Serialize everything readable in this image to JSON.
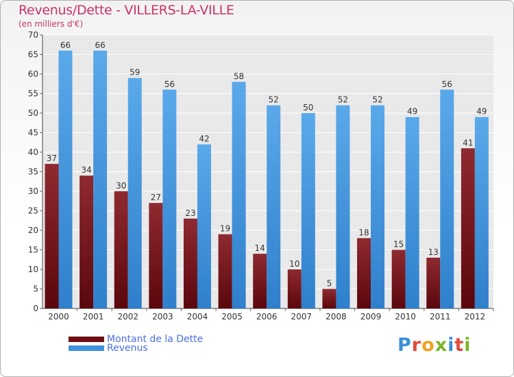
{
  "chart_data": {
    "type": "bar",
    "title": "Revenus/Dette - VILLERS-LA-VILLE",
    "subtitle": "(en milliers d'€)",
    "categories": [
      "2000",
      "2001",
      "2002",
      "2003",
      "2004",
      "2005",
      "2006",
      "2007",
      "2008",
      "2009",
      "2010",
      "2011",
      "2012"
    ],
    "series": [
      {
        "name": "Montant de la Dette",
        "color": "#6e0f15",
        "values": [
          37,
          34,
          30,
          27,
          23,
          19,
          14,
          10,
          5,
          18,
          15,
          13,
          41
        ]
      },
      {
        "name": "Revenus",
        "color": "#3e92e0",
        "values": [
          66,
          66,
          59,
          56,
          42,
          58,
          52,
          50,
          52,
          52,
          49,
          56,
          49
        ]
      }
    ],
    "ylim": [
      0,
      70
    ],
    "yticks": [
      0,
      5,
      10,
      15,
      20,
      25,
      30,
      35,
      40,
      45,
      50,
      55,
      60,
      65,
      70
    ],
    "grid": true,
    "legend": "bottom-left"
  },
  "legend": {
    "debt_label": "Montant de la Dette",
    "revenue_label": "Revenus"
  },
  "branding": {
    "logo_text": "Proxiti"
  }
}
